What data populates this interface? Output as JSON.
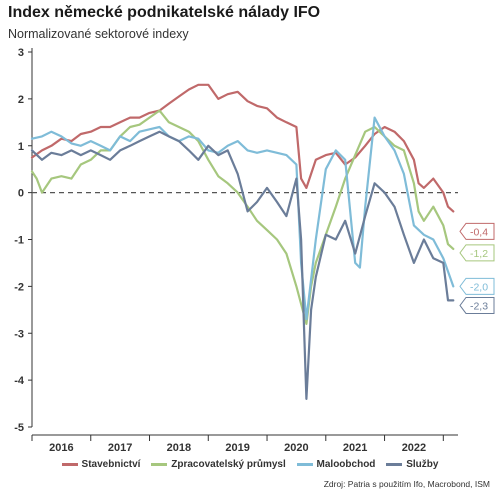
{
  "title": "Index německé podnikatelské nálady IFO",
  "subtitle": "Normalizované sektorové indexy",
  "source": "Zdroj: Patria s použitím Ifo, Macrobond, ISM",
  "colors": {
    "stavebnictvi": "#c0696a",
    "prumysl": "#a6c77e",
    "maloobchod": "#7fbcd8",
    "sluzby": "#6b7d99"
  },
  "chart_data": {
    "type": "line",
    "title": "Index německé podnikatelské nálady IFO",
    "subtitle": "Normalizované sektorové indexy",
    "xlabel": "",
    "ylabel": "",
    "ylim": [
      -5,
      3
    ],
    "yticks": [
      3,
      2,
      1,
      0,
      -1,
      -2,
      -3,
      -4,
      -5
    ],
    "xlim": [
      2015.5,
      2022.75
    ],
    "xtick_labels": [
      "2016",
      "2017",
      "2018",
      "2019",
      "2020",
      "2021",
      "2022"
    ],
    "zero_line": "dashed",
    "grid": false,
    "legend_position": "bottom",
    "series": [
      {
        "name": "Stavebnictví",
        "color": "#c0696a",
        "end_label": "-0,4",
        "x": [
          2015.5,
          2015.67,
          2015.83,
          2016.0,
          2016.17,
          2016.33,
          2016.5,
          2016.67,
          2016.83,
          2017.0,
          2017.17,
          2017.33,
          2017.5,
          2017.67,
          2017.83,
          2018.0,
          2018.17,
          2018.33,
          2018.5,
          2018.67,
          2018.83,
          2019.0,
          2019.17,
          2019.33,
          2019.5,
          2019.67,
          2019.83,
          2020.0,
          2020.08,
          2020.17,
          2020.33,
          2020.5,
          2020.67,
          2020.83,
          2021.0,
          2021.17,
          2021.33,
          2021.5,
          2021.67,
          2021.83,
          2022.0,
          2022.08,
          2022.17,
          2022.33,
          2022.5,
          2022.58,
          2022.67
        ],
        "y": [
          0.75,
          0.9,
          1.0,
          1.15,
          1.1,
          1.25,
          1.3,
          1.4,
          1.4,
          1.5,
          1.6,
          1.6,
          1.7,
          1.75,
          1.9,
          2.05,
          2.2,
          2.3,
          2.3,
          2.0,
          2.1,
          2.15,
          1.95,
          1.85,
          1.8,
          1.6,
          1.5,
          1.4,
          0.3,
          0.1,
          0.7,
          0.8,
          0.85,
          0.6,
          0.75,
          1.0,
          1.25,
          1.4,
          1.3,
          1.1,
          0.7,
          0.2,
          0.1,
          0.3,
          0.0,
          -0.3,
          -0.4
        ]
      },
      {
        "name": "Zpracovatelský průmysl",
        "color": "#a6c77e",
        "end_label": "-1,2",
        "x": [
          2015.5,
          2015.58,
          2015.67,
          2015.83,
          2016.0,
          2016.17,
          2016.33,
          2016.5,
          2016.67,
          2016.83,
          2017.0,
          2017.17,
          2017.33,
          2017.5,
          2017.67,
          2017.83,
          2018.0,
          2018.17,
          2018.33,
          2018.5,
          2018.67,
          2018.83,
          2019.0,
          2019.17,
          2019.33,
          2019.5,
          2019.67,
          2019.83,
          2020.0,
          2020.17,
          2020.25,
          2020.33,
          2020.5,
          2020.67,
          2020.83,
          2021.0,
          2021.17,
          2021.33,
          2021.5,
          2021.67,
          2021.83,
          2022.0,
          2022.08,
          2022.17,
          2022.33,
          2022.5,
          2022.58,
          2022.67
        ],
        "y": [
          0.45,
          0.3,
          0.0,
          0.3,
          0.35,
          0.3,
          0.6,
          0.7,
          0.9,
          0.9,
          1.2,
          1.4,
          1.45,
          1.6,
          1.75,
          1.5,
          1.4,
          1.3,
          1.1,
          0.7,
          0.35,
          0.2,
          0.0,
          -0.3,
          -0.6,
          -0.8,
          -1.0,
          -1.3,
          -2.0,
          -2.8,
          -2.0,
          -1.5,
          -0.9,
          -0.3,
          0.3,
          0.8,
          1.3,
          1.4,
          1.2,
          1.0,
          0.9,
          0.2,
          -0.4,
          -0.6,
          -0.3,
          -0.7,
          -1.1,
          -1.2
        ]
      },
      {
        "name": "Maloobchod",
        "color": "#7fbcd8",
        "end_label": "-2,0",
        "x": [
          2015.5,
          2015.67,
          2015.83,
          2016.0,
          2016.17,
          2016.33,
          2016.5,
          2016.67,
          2016.83,
          2017.0,
          2017.17,
          2017.33,
          2017.5,
          2017.67,
          2017.83,
          2018.0,
          2018.17,
          2018.33,
          2018.5,
          2018.67,
          2018.83,
          2019.0,
          2019.17,
          2019.33,
          2019.5,
          2019.67,
          2019.83,
          2020.0,
          2020.08,
          2020.17,
          2020.33,
          2020.5,
          2020.67,
          2020.83,
          2021.0,
          2021.08,
          2021.17,
          2021.33,
          2021.5,
          2021.67,
          2021.83,
          2022.0,
          2022.17,
          2022.33,
          2022.5,
          2022.67
        ],
        "y": [
          1.15,
          1.2,
          1.3,
          1.2,
          1.05,
          1.0,
          1.1,
          1.0,
          0.9,
          1.2,
          1.1,
          1.3,
          1.35,
          1.4,
          1.2,
          1.1,
          1.2,
          1.15,
          0.9,
          0.85,
          1.0,
          1.1,
          0.9,
          0.85,
          0.9,
          0.85,
          0.8,
          0.6,
          -1.5,
          -2.7,
          -1.0,
          0.5,
          0.9,
          0.7,
          -1.5,
          -1.6,
          -0.3,
          1.6,
          1.2,
          0.9,
          0.4,
          -0.7,
          -0.9,
          -1.0,
          -1.4,
          -2.0
        ]
      },
      {
        "name": "Služby",
        "color": "#6b7d99",
        "end_label": "-2,3",
        "x": [
          2015.5,
          2015.67,
          2015.83,
          2016.0,
          2016.17,
          2016.33,
          2016.5,
          2016.67,
          2016.83,
          2017.0,
          2017.17,
          2017.33,
          2017.5,
          2017.67,
          2017.83,
          2018.0,
          2018.17,
          2018.33,
          2018.5,
          2018.67,
          2018.83,
          2019.0,
          2019.17,
          2019.33,
          2019.5,
          2019.67,
          2019.83,
          2020.0,
          2020.08,
          2020.17,
          2020.25,
          2020.33,
          2020.5,
          2020.67,
          2020.83,
          2021.0,
          2021.17,
          2021.33,
          2021.5,
          2021.67,
          2021.83,
          2022.0,
          2022.17,
          2022.33,
          2022.5,
          2022.58,
          2022.67
        ],
        "y": [
          0.9,
          0.7,
          0.85,
          0.8,
          0.9,
          0.8,
          0.9,
          0.8,
          0.7,
          0.9,
          1.0,
          1.1,
          1.2,
          1.3,
          1.2,
          1.1,
          0.9,
          0.7,
          1.0,
          0.8,
          0.9,
          0.4,
          -0.4,
          -0.2,
          0.1,
          -0.2,
          -0.5,
          0.3,
          -1.0,
          -4.4,
          -2.5,
          -1.8,
          -0.9,
          -1.0,
          -0.6,
          -1.3,
          -0.5,
          0.2,
          0.0,
          -0.3,
          -0.9,
          -1.5,
          -1.0,
          -1.4,
          -1.5,
          -2.3,
          -2.3
        ]
      }
    ]
  }
}
